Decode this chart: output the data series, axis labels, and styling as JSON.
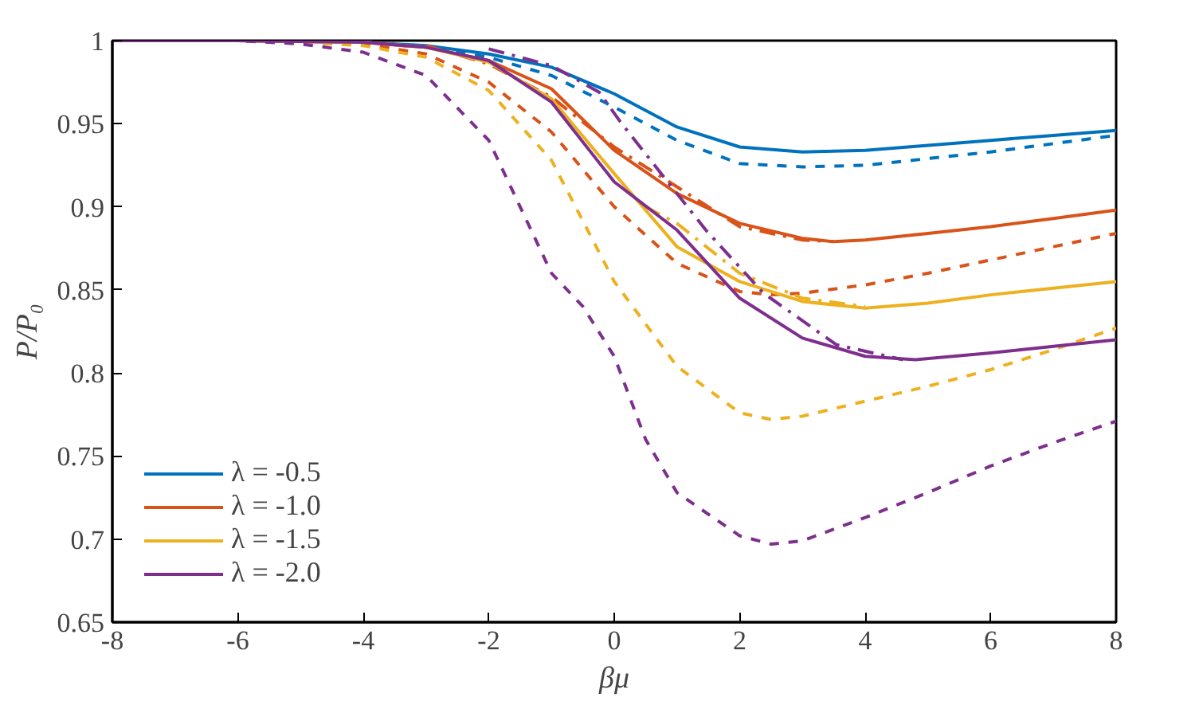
{
  "chart_data": {
    "type": "line",
    "xlabel": "βμ",
    "ylabel": "P/P₀",
    "xlim": [
      -8,
      8
    ],
    "ylim": [
      0.65,
      1
    ],
    "xticks": [
      -8,
      -6,
      -4,
      -2,
      0,
      2,
      4,
      6,
      8
    ],
    "yticks": [
      0.65,
      0.7,
      0.75,
      0.8,
      0.85,
      0.9,
      0.95,
      1
    ],
    "grid": false,
    "legend": "bottom left",
    "series": [
      {
        "name": "λ = -0.5",
        "color": "#0072bd",
        "line_style": "solid",
        "x": [
          -8,
          -6,
          -4,
          -3,
          -2,
          -1,
          0,
          1,
          2,
          3,
          4,
          5,
          6,
          7,
          8
        ],
        "values": [
          1,
          1,
          0.999,
          0.997,
          0.992,
          0.984,
          0.968,
          0.948,
          0.936,
          0.933,
          0.934,
          0.937,
          0.94,
          0.943,
          0.946
        ]
      },
      {
        "color": "#0072bd",
        "line_style": "dashed",
        "x": [
          -8,
          -6,
          -4,
          -3,
          -2,
          -1,
          0,
          1,
          2,
          3,
          4,
          5,
          6,
          7,
          8
        ],
        "values": [
          1,
          1,
          0.999,
          0.996,
          0.99,
          0.979,
          0.96,
          0.94,
          0.926,
          0.924,
          0.925,
          0.929,
          0.933,
          0.938,
          0.943
        ]
      },
      {
        "name": "λ = -1.0",
        "color": "#d95319",
        "line_style": "solid",
        "x": [
          -8,
          -6,
          -4,
          -3,
          -2,
          -1,
          0,
          1,
          2,
          3,
          3.5,
          4,
          5,
          6,
          7,
          8
        ],
        "values": [
          1,
          1,
          0.999,
          0.996,
          0.988,
          0.971,
          0.934,
          0.908,
          0.89,
          0.881,
          0.879,
          0.88,
          0.884,
          0.888,
          0.893,
          0.898
        ]
      },
      {
        "color": "#d95319",
        "line_style": "dashed",
        "x": [
          -8,
          -6,
          -4,
          -3,
          -2,
          -1,
          0,
          1,
          2,
          2.5,
          3,
          4,
          5,
          6,
          7,
          8
        ],
        "values": [
          1,
          1,
          0.998,
          0.992,
          0.975,
          0.945,
          0.9,
          0.866,
          0.849,
          0.847,
          0.848,
          0.853,
          0.86,
          0.868,
          0.876,
          0.884
        ]
      },
      {
        "color": "#d95319",
        "line_style": "dashdot",
        "x": [
          -3,
          -2,
          -1,
          0,
          1,
          2,
          3,
          3.5
        ],
        "values": [
          0.997,
          0.986,
          0.966,
          0.936,
          0.912,
          0.888,
          0.88,
          0.879
        ]
      },
      {
        "name": "λ = -1.5",
        "color": "#edb120",
        "line_style": "solid",
        "x": [
          -8,
          -6,
          -4,
          -3,
          -2,
          -1,
          0,
          1,
          2,
          3,
          4,
          5,
          6,
          7,
          8
        ],
        "values": [
          1,
          1,
          0.999,
          0.996,
          0.987,
          0.965,
          0.92,
          0.876,
          0.855,
          0.843,
          0.839,
          0.842,
          0.847,
          0.851,
          0.855
        ]
      },
      {
        "color": "#edb120",
        "line_style": "dashed",
        "x": [
          -8,
          -6,
          -5,
          -4,
          -3,
          -2,
          -1,
          0,
          1,
          2,
          2.5,
          3,
          4,
          5,
          6,
          7,
          8
        ],
        "values": [
          1,
          1,
          0.999,
          0.997,
          0.99,
          0.97,
          0.928,
          0.855,
          0.804,
          0.776,
          0.772,
          0.774,
          0.783,
          0.792,
          0.802,
          0.814,
          0.827
        ]
      },
      {
        "color": "#edb120",
        "line_style": "dashdot",
        "x": [
          0.5,
          1,
          2,
          3,
          4
        ],
        "values": [
          0.9,
          0.89,
          0.86,
          0.845,
          0.84
        ]
      },
      {
        "name": "λ = -2.0",
        "color": "#7e2f8e",
        "line_style": "solid",
        "x": [
          -8,
          -6,
          -4,
          -3,
          -2,
          -1,
          0,
          1,
          2,
          3,
          4,
          4.8,
          6,
          7,
          8
        ],
        "values": [
          1,
          1,
          0.999,
          0.996,
          0.988,
          0.963,
          0.915,
          0.886,
          0.845,
          0.821,
          0.81,
          0.808,
          0.812,
          0.816,
          0.82
        ]
      },
      {
        "color": "#7e2f8e",
        "line_style": "dashed",
        "x": [
          -8,
          -6,
          -5,
          -4,
          -3,
          -2,
          -1,
          -0.5,
          0,
          0.5,
          1,
          2,
          2.5,
          3,
          4,
          5,
          6,
          7,
          8
        ],
        "values": [
          1,
          1,
          0.998,
          0.993,
          0.979,
          0.94,
          0.86,
          0.84,
          0.81,
          0.76,
          0.728,
          0.702,
          0.697,
          0.699,
          0.713,
          0.728,
          0.744,
          0.758,
          0.771
        ]
      },
      {
        "color": "#7e2f8e",
        "line_style": "dashdot",
        "x": [
          -2,
          -1,
          -0.24,
          0.1,
          1.46,
          2.38,
          3.54,
          4.6
        ],
        "values": [
          0.995,
          0.985,
          0.969,
          0.951,
          0.886,
          0.848,
          0.817,
          0.808
        ]
      }
    ]
  }
}
